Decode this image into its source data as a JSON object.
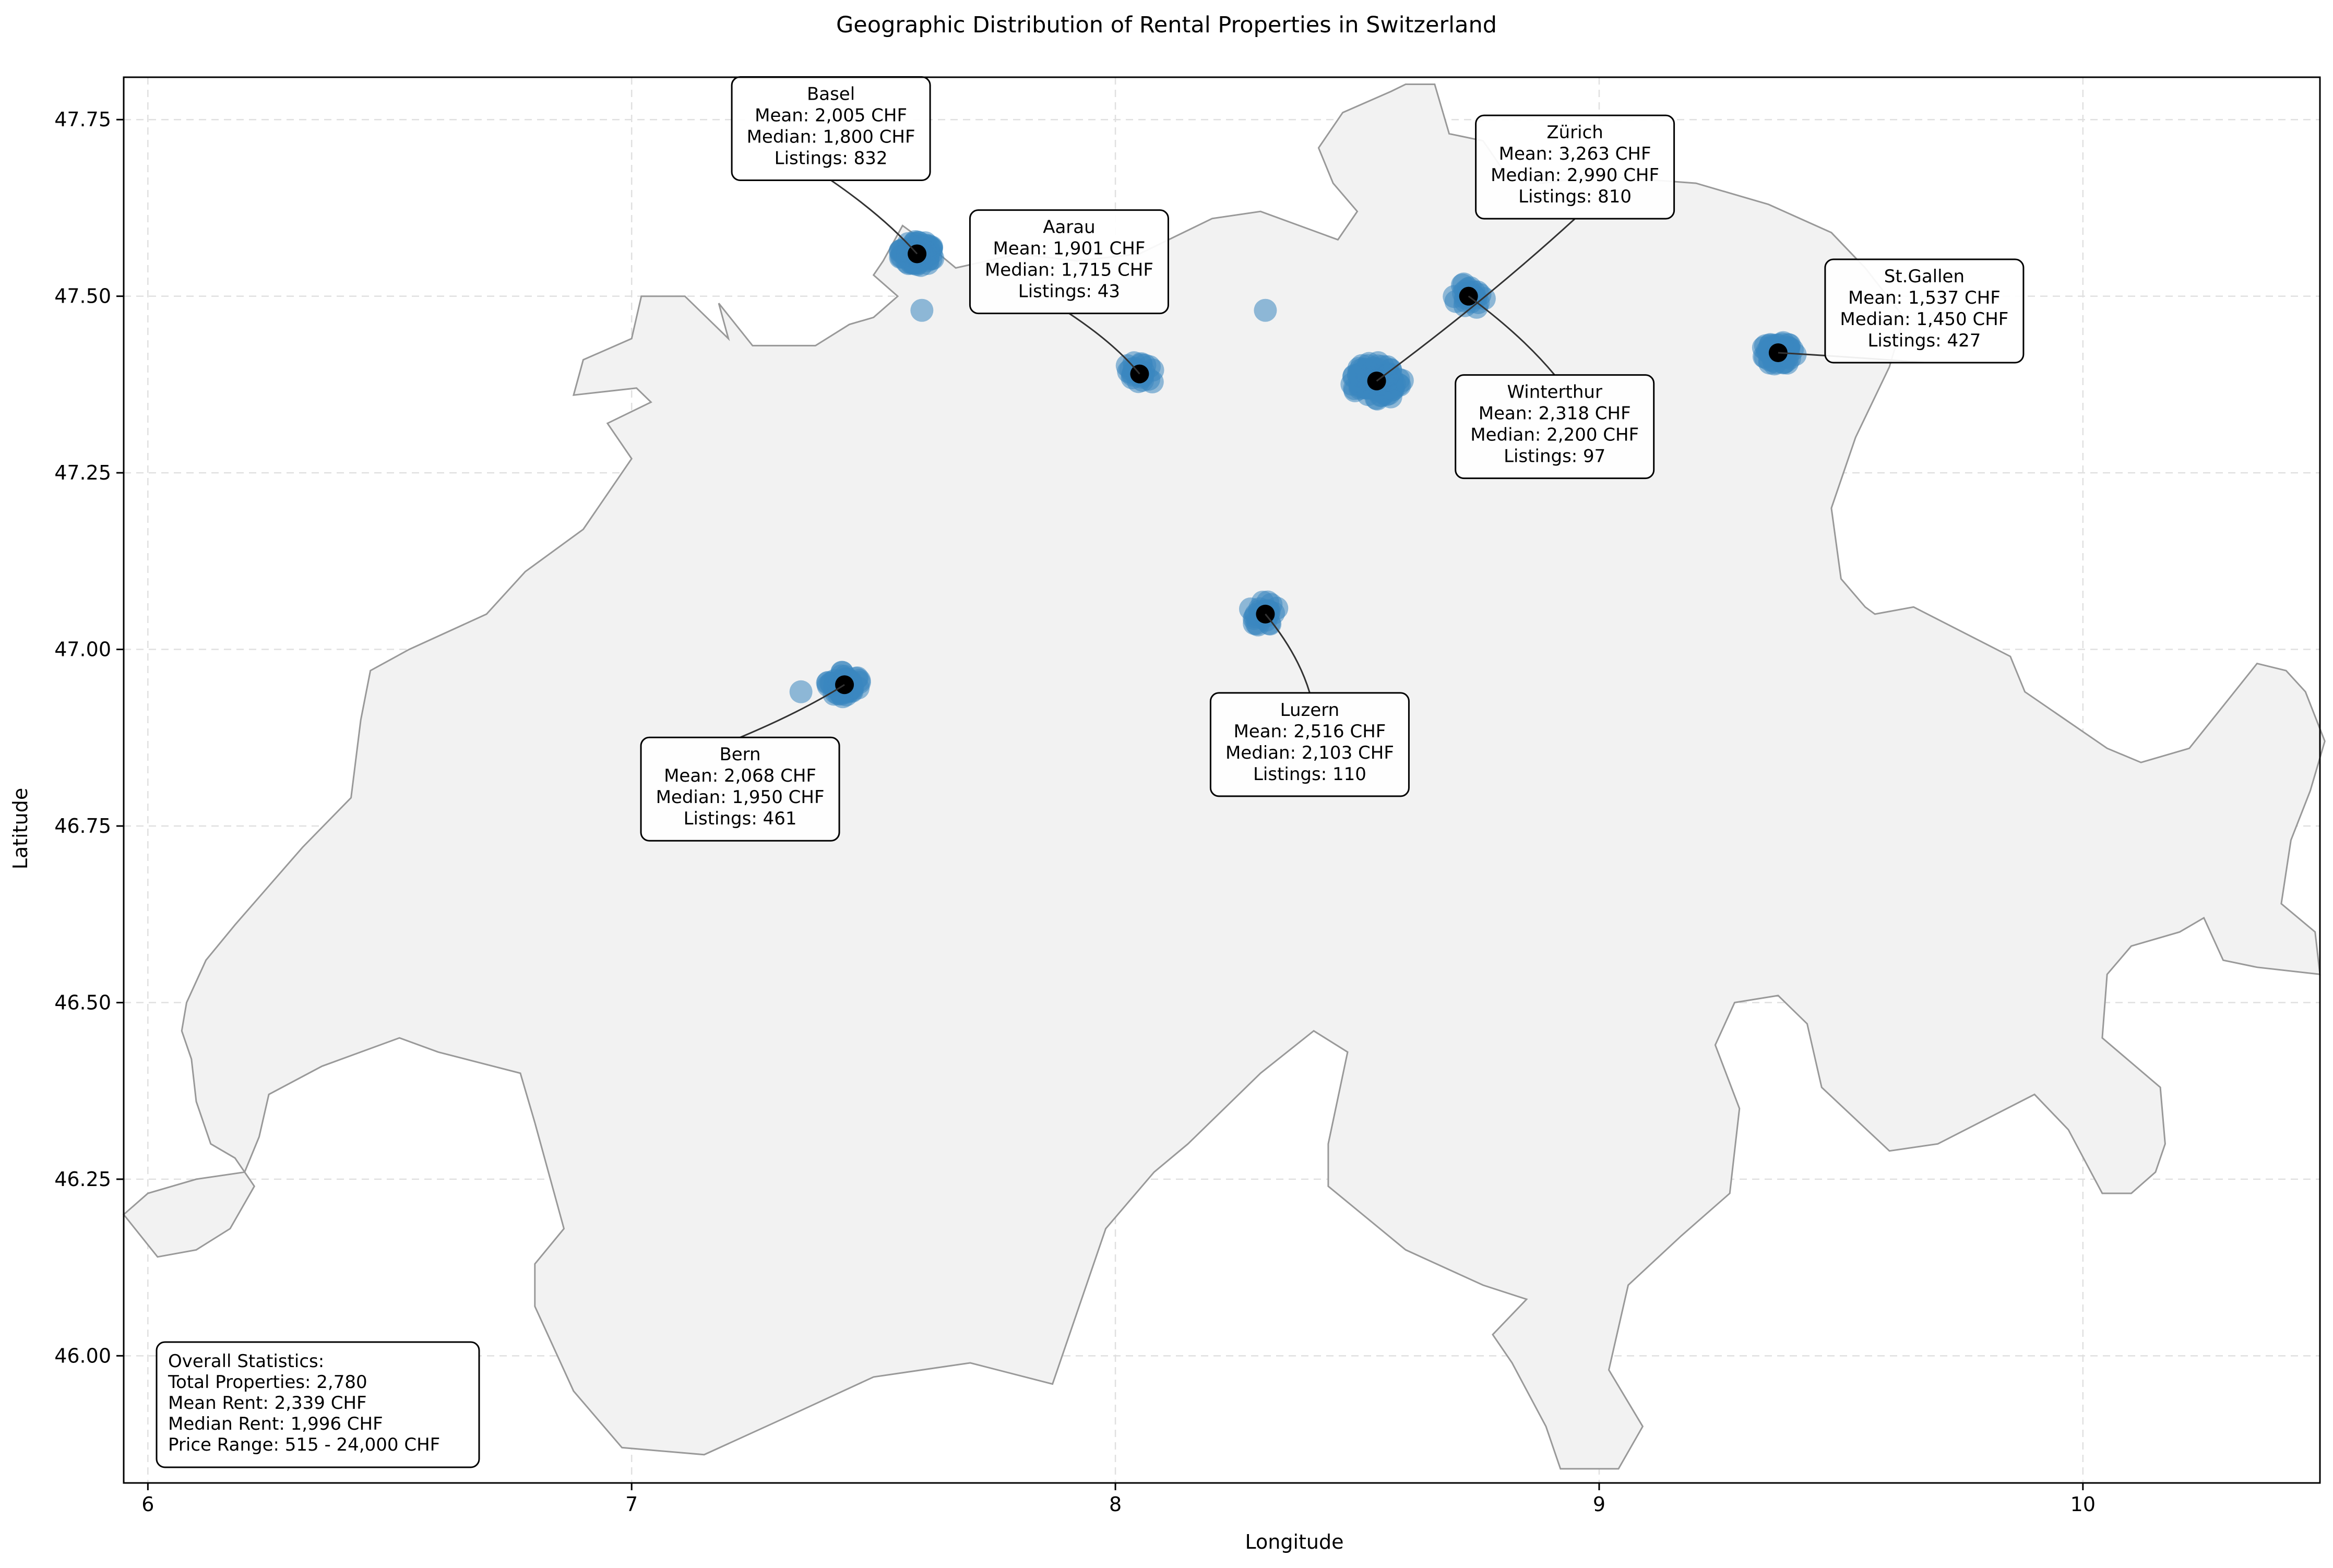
{
  "chart_data": {
    "type": "scatter",
    "title": "Geographic Distribution of Rental Properties in Switzerland",
    "xlabel": "Longitude",
    "ylabel": "Latitude",
    "xlim": [
      5.95,
      10.49
    ],
    "ylim": [
      45.82,
      47.81
    ],
    "xticks": [
      6,
      7,
      8,
      9,
      10
    ],
    "yticks": [
      46.0,
      46.25,
      46.5,
      46.75,
      47.0,
      47.25,
      47.5,
      47.75
    ],
    "ytick_labels": [
      "46.00",
      "46.25",
      "46.50",
      "46.75",
      "47.00",
      "47.25",
      "47.50",
      "47.75"
    ],
    "grid": true,
    "colors": {
      "points": "#3a86c0",
      "centers": "#000000",
      "country_fill": "#f2f2f2",
      "country_edge": "#999999"
    },
    "country_outline": "Switzerland",
    "cities": [
      {
        "name": "Basel",
        "lon": 7.59,
        "lat": 47.56,
        "mean": "2,005 CHF",
        "median": "1,800 CHF",
        "listings": "832"
      },
      {
        "name": "Aarau",
        "lon": 8.05,
        "lat": 47.39,
        "mean": "1,901 CHF",
        "median": "1,715 CHF",
        "listings": "43"
      },
      {
        "name": "Zürich",
        "lon": 8.54,
        "lat": 47.38,
        "mean": "3,263 CHF",
        "median": "2,990 CHF",
        "listings": "810"
      },
      {
        "name": "Winterthur",
        "lon": 8.73,
        "lat": 47.5,
        "mean": "2,318 CHF",
        "median": "2,200 CHF",
        "listings": "97"
      },
      {
        "name": "St.Gallen",
        "lon": 9.37,
        "lat": 47.42,
        "mean": "1,537 CHF",
        "median": "1,450 CHF",
        "listings": "427"
      },
      {
        "name": "Luzern",
        "lon": 8.31,
        "lat": 47.05,
        "mean": "2,516 CHF",
        "median": "2,103 CHF",
        "listings": "110"
      },
      {
        "name": "Bern",
        "lon": 7.44,
        "lat": 46.95,
        "mean": "2,068 CHF",
        "median": "1,950 CHF",
        "listings": "461"
      }
    ],
    "outlier_points": [
      {
        "lon": 7.6,
        "lat": 47.48
      },
      {
        "lon": 8.31,
        "lat": 47.48
      },
      {
        "lon": 7.35,
        "lat": 46.94
      }
    ],
    "stats_box": {
      "heading": "Overall Statistics:",
      "lines": [
        "Total Properties: 2,780",
        "Mean Rent: 2,339 CHF",
        "Median Rent: 1,996 CHF",
        "Price Range: 515 - 24,000 CHF"
      ]
    }
  }
}
